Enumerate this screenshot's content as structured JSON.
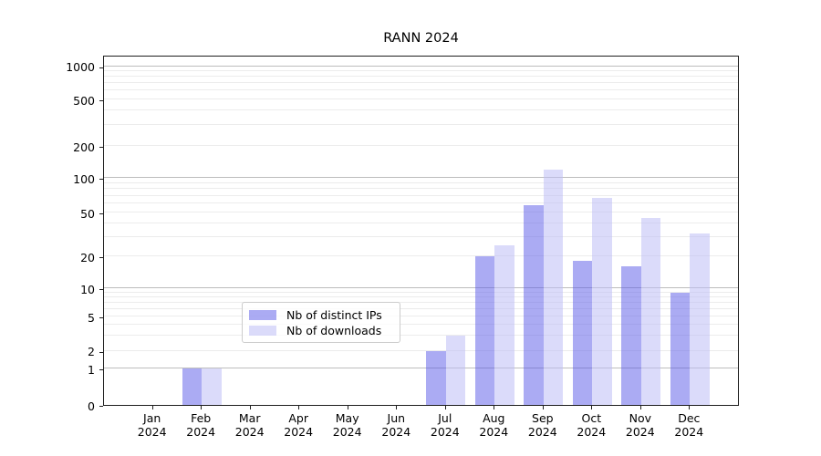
{
  "title": "RANN 2024",
  "legend": {
    "items": [
      {
        "label": "Nb of distinct IPs"
      },
      {
        "label": "Nb of downloads"
      }
    ]
  },
  "chart_data": {
    "type": "bar",
    "title": "RANN 2024",
    "categories": [
      "Jan 2024",
      "Feb 2024",
      "Mar 2024",
      "Apr 2024",
      "May 2024",
      "Jun 2024",
      "Jul 2024",
      "Aug 2024",
      "Sep 2024",
      "Oct 2024",
      "Nov 2024",
      "Dec 2024"
    ],
    "series": [
      {
        "name": "Nb of distinct IPs",
        "color": "rgba(88,88,232,0.5)",
        "values": [
          0,
          1,
          0,
          0,
          0,
          0,
          2,
          20,
          58,
          18,
          16,
          9
        ]
      },
      {
        "name": "Nb of downloads",
        "color": "rgba(190,190,246,0.55)",
        "values": [
          0,
          1,
          0,
          0,
          0,
          0,
          3,
          25,
          120,
          67,
          45,
          32
        ]
      }
    ],
    "y_axis": {
      "scale": "symlog",
      "ticks": [
        0,
        1,
        2,
        5,
        10,
        20,
        50,
        100,
        200,
        500,
        1000
      ],
      "range": [
        0,
        1300
      ]
    },
    "x_axis": {
      "year_line": "2024"
    },
    "grid": true,
    "legend_position": "lower center",
    "colors": {
      "grid_minor": "#ececec",
      "grid_major": "#bdbdbd",
      "spine": "#1f1f1f",
      "bar_ips_rendered": "#a8a8f4",
      "bar_downloads_rendered": "#dadaf9"
    }
  }
}
